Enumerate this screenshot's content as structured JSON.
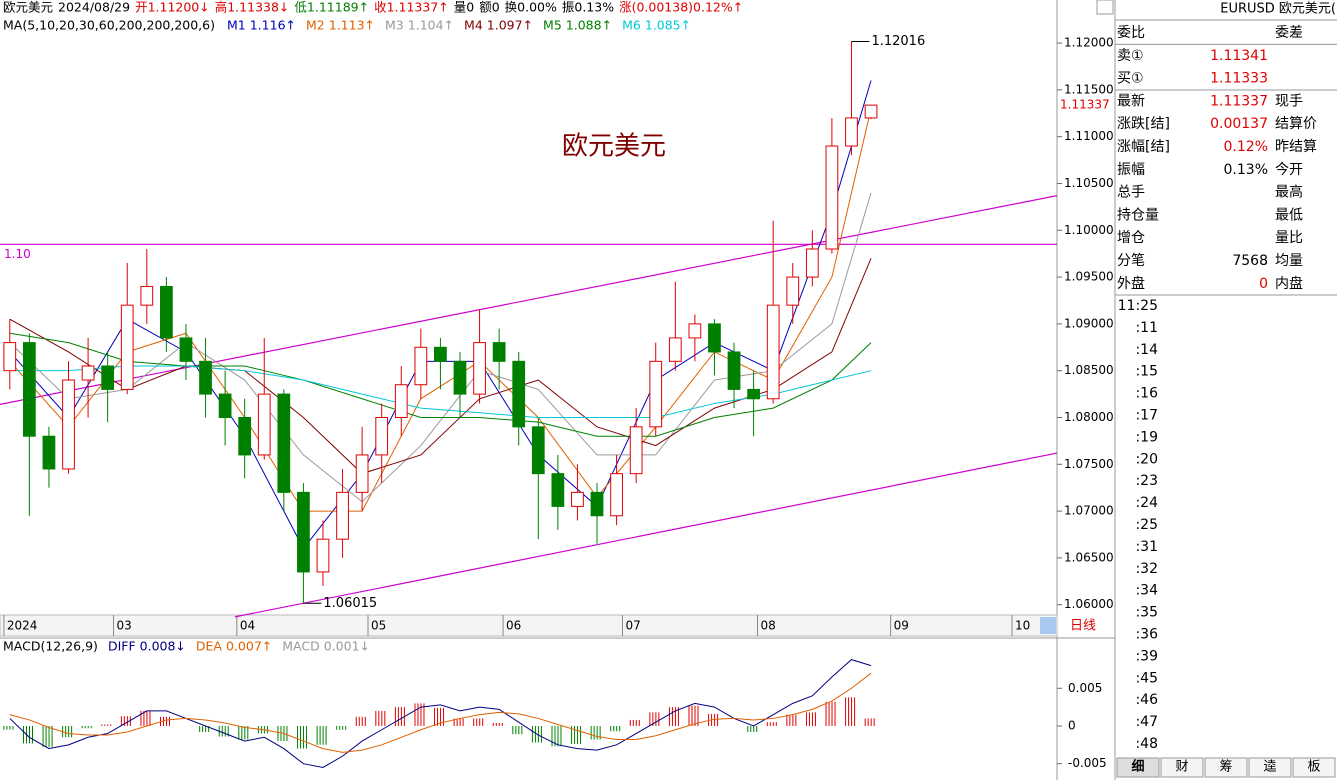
{
  "chart_data": {
    "type": "candlestick",
    "title": "欧元美元",
    "info_bar": [
      {
        "text": "欧元美元",
        "color": "#000"
      },
      {
        "text": "2024/08/29",
        "color": "#000"
      },
      {
        "text": "开1.11200↓",
        "color": "#e00000"
      },
      {
        "text": "高1.11338↓",
        "color": "#e00000"
      },
      {
        "text": "低1.11189↑",
        "color": "#008000"
      },
      {
        "text": "收1.11337↑",
        "color": "#e00000"
      },
      {
        "text": "量0",
        "color": "#000"
      },
      {
        "text": "额0",
        "color": "#000"
      },
      {
        "text": "换0.00%",
        "color": "#000"
      },
      {
        "text": "振0.13%",
        "color": "#000"
      },
      {
        "text": "涨(0.00138)0.12%↑",
        "color": "#e00000"
      }
    ],
    "ma_title": "MA(5,10,20,30,60,200,200,200,6)",
    "xlim": [
      -0.5,
      53.5
    ],
    "xticks": [
      {
        "value": -0.3,
        "label": "2024"
      },
      {
        "value": 5.3,
        "label": "03"
      },
      {
        "value": 11.6,
        "label": "04"
      },
      {
        "value": 18.3,
        "label": "05"
      },
      {
        "value": 25.2,
        "label": "06"
      },
      {
        "value": 31.3,
        "label": "07"
      },
      {
        "value": 38.2,
        "label": "08"
      },
      {
        "value": 45,
        "label": "09"
      },
      {
        "value": 51.2,
        "label": "10"
      }
    ],
    "ylim": [
      1.0589,
      1.1246
    ],
    "yticks": [
      {
        "value": 1.06,
        "label": "1.06000"
      },
      {
        "value": 1.065,
        "label": "1.06500"
      },
      {
        "value": 1.07,
        "label": "1.07000"
      },
      {
        "value": 1.075,
        "label": "1.07500"
      },
      {
        "value": 1.08,
        "label": "1.08000"
      },
      {
        "value": 1.085,
        "label": "1.08500"
      },
      {
        "value": 1.09,
        "label": "1.09000"
      },
      {
        "value": 1.095,
        "label": "1.09500"
      },
      {
        "value": 1.1,
        "label": "1.10000"
      },
      {
        "value": 1.105,
        "label": "1.10500"
      },
      {
        "value": 1.11,
        "label": "1.11000"
      },
      {
        "value": 1.115,
        "label": "1.11500"
      },
      {
        "value": 1.12,
        "label": "1.12000"
      }
    ],
    "last_price": {
      "value": 1.11337,
      "label": "1.11337"
    },
    "up_color": "#e00000",
    "down_color": "#008000",
    "candles": [
      [
        1.085,
        1.0905,
        1.083,
        1.088
      ],
      [
        1.088,
        1.089,
        1.0695,
        1.078
      ],
      [
        1.078,
        1.079,
        1.0725,
        1.0745
      ],
      [
        1.0745,
        1.086,
        1.074,
        1.084
      ],
      [
        1.084,
        1.0885,
        1.08,
        1.0855
      ],
      [
        1.0855,
        1.087,
        1.0795,
        1.083
      ],
      [
        1.083,
        1.0965,
        1.0825,
        1.092
      ],
      [
        1.092,
        1.098,
        1.09,
        1.094
      ],
      [
        1.094,
        1.095,
        1.087,
        1.0885
      ],
      [
        1.0885,
        1.09,
        1.084,
        1.086
      ],
      [
        1.086,
        1.0885,
        1.08,
        1.0825
      ],
      [
        1.0825,
        1.085,
        1.077,
        1.08
      ],
      [
        1.08,
        1.082,
        1.0735,
        1.076
      ],
      [
        1.076,
        1.0885,
        1.0755,
        1.0825
      ],
      [
        1.0825,
        1.083,
        1.07,
        1.072
      ],
      [
        1.072,
        1.073,
        1.06015,
        1.0635
      ],
      [
        1.0635,
        1.069,
        1.062,
        1.067
      ],
      [
        1.067,
        1.0745,
        1.065,
        1.072
      ],
      [
        1.072,
        1.079,
        1.07,
        1.076
      ],
      [
        1.076,
        1.0815,
        1.073,
        1.08
      ],
      [
        1.08,
        1.0855,
        1.078,
        1.0835
      ],
      [
        1.0835,
        1.0895,
        1.082,
        1.0875
      ],
      [
        1.0875,
        1.0885,
        1.083,
        1.086
      ],
      [
        1.086,
        1.087,
        1.08,
        1.0825
      ],
      [
        1.0825,
        1.0915,
        1.0815,
        1.088
      ],
      [
        1.088,
        1.0895,
        1.083,
        1.086
      ],
      [
        1.086,
        1.087,
        1.077,
        1.079
      ],
      [
        1.079,
        1.08,
        1.067,
        1.074
      ],
      [
        1.074,
        1.076,
        1.068,
        1.0705
      ],
      [
        1.0705,
        1.075,
        1.069,
        1.072
      ],
      [
        1.072,
        1.073,
        1.0665,
        1.0695
      ],
      [
        1.0695,
        1.076,
        1.0685,
        1.074
      ],
      [
        1.074,
        1.081,
        1.073,
        1.079
      ],
      [
        1.079,
        1.088,
        1.078,
        1.086
      ],
      [
        1.086,
        1.0945,
        1.085,
        1.0885
      ],
      [
        1.0885,
        1.091,
        1.086,
        1.09
      ],
      [
        1.09,
        1.0905,
        1.0845,
        1.087
      ],
      [
        1.087,
        1.088,
        1.081,
        1.083
      ],
      [
        1.083,
        1.085,
        1.078,
        1.082
      ],
      [
        1.082,
        1.101,
        1.0815,
        1.092
      ],
      [
        1.092,
        1.0965,
        1.09,
        1.095
      ],
      [
        1.095,
        1.1,
        1.094,
        1.098
      ],
      [
        1.098,
        1.112,
        1.0975,
        1.109
      ],
      [
        1.109,
        1.12016,
        1.108,
        1.112
      ],
      [
        1.112,
        1.11338,
        1.11189,
        1.11337
      ]
    ],
    "annotations": [
      {
        "text": "1.12016",
        "candle": 43
      },
      {
        "text": "1.06015",
        "candle": 15
      }
    ],
    "ma": {
      "x": [
        0,
        3,
        6,
        9,
        12,
        15,
        18,
        21,
        24,
        27,
        30,
        33,
        36,
        39,
        42,
        44
      ],
      "series": [
        {
          "name": "M1",
          "label": "1.116↑",
          "color": "#0000c0",
          "values": [
            1.087,
            1.08,
            1.0905,
            1.087,
            1.078,
            1.066,
            1.074,
            1.086,
            1.086,
            1.076,
            1.0705,
            1.084,
            1.088,
            1.085,
            1.102,
            1.116
          ]
        },
        {
          "name": "M2",
          "label": "1.113↑",
          "color": "#e06000",
          "values": [
            1.086,
            1.079,
            1.087,
            1.089,
            1.08,
            1.07,
            1.07,
            1.082,
            1.086,
            1.08,
            1.0715,
            1.079,
            1.087,
            1.084,
            1.095,
            1.113
          ]
        },
        {
          "name": "M3",
          "label": "1.104↑",
          "color": "#999999",
          "values": [
            1.088,
            1.082,
            1.083,
            1.088,
            1.084,
            1.076,
            1.071,
            1.077,
            1.085,
            1.083,
            1.076,
            1.076,
            1.084,
            1.085,
            1.09,
            1.104
          ]
        },
        {
          "name": "M4",
          "label": "1.097↑",
          "color": "#800000",
          "values": [
            1.0905,
            1.087,
            1.083,
            1.0855,
            1.085,
            1.08,
            1.074,
            1.076,
            1.082,
            1.084,
            1.079,
            1.077,
            1.081,
            1.083,
            1.087,
            1.097
          ]
        },
        {
          "name": "M5",
          "label": "1.088↑",
          "color": "#008000",
          "values": [
            1.089,
            1.088,
            1.086,
            1.0855,
            1.0855,
            1.084,
            1.082,
            1.08,
            1.08,
            1.0795,
            1.078,
            1.078,
            1.08,
            1.081,
            1.084,
            1.088
          ]
        },
        {
          "name": "M6",
          "label": "1.085↑",
          "color": "#00c8d8",
          "values": [
            1.085,
            1.085,
            1.0855,
            1.0855,
            1.085,
            1.084,
            1.0825,
            1.081,
            1.0805,
            1.08,
            1.08,
            1.08,
            1.0815,
            1.0825,
            1.084,
            1.085
          ]
        }
      ]
    },
    "trend_lines": [
      {
        "color": "#d000d0",
        "x": [
          -0.5,
          53.5
        ],
        "y": [
          1.0814,
          1.1037
        ]
      },
      {
        "color": "#d000d0",
        "x": [
          11.5,
          53.5
        ],
        "y": [
          1.0587,
          1.0762
        ]
      },
      {
        "color": "#d000d0",
        "x": [
          -0.5,
          53.5
        ],
        "y": [
          1.0985,
          1.0985
        ],
        "label": "1.10"
      }
    ],
    "period_button": "日线",
    "macd": {
      "title": "MACD(12,26,9)",
      "ylim": [
        -0.0065,
        0.0114
      ],
      "yticks": [
        -0.005,
        0,
        0.005
      ],
      "diff": {
        "name": "DIFF",
        "label": "0.008↓",
        "color": "#000080",
        "values": [
          0.001,
          -0.0015,
          -0.003,
          -0.0025,
          -0.0015,
          -0.001,
          0.0005,
          0.002,
          0.002,
          0.001,
          0.0,
          -0.001,
          -0.002,
          -0.0015,
          -0.003,
          -0.005,
          -0.0055,
          -0.004,
          -0.002,
          -0.0005,
          0.001,
          0.0025,
          0.0028,
          0.002,
          0.0025,
          0.0022,
          0.0005,
          -0.0012,
          -0.0025,
          -0.003,
          -0.0032,
          -0.0025,
          -0.001,
          0.0005,
          0.002,
          0.003,
          0.0025,
          0.001,
          0.0,
          0.0015,
          0.003,
          0.004,
          0.0065,
          0.0088,
          0.008
        ]
      },
      "dea": {
        "name": "DEA",
        "label": "0.007↑",
        "color": "#e06000",
        "values": [
          0.0015,
          0.0008,
          -0.0002,
          -0.001,
          -0.0012,
          -0.0012,
          -0.0008,
          0.0,
          0.0008,
          0.001,
          0.0008,
          0.0004,
          -0.0002,
          -0.0005,
          -0.001,
          -0.002,
          -0.003,
          -0.0035,
          -0.0032,
          -0.0025,
          -0.0015,
          -0.0005,
          0.0004,
          0.001,
          0.0015,
          0.0018,
          0.0016,
          0.001,
          0.0002,
          -0.0006,
          -0.0014,
          -0.0018,
          -0.0018,
          -0.0013,
          -0.0005,
          0.0003,
          0.0009,
          0.001,
          0.0008,
          0.001,
          0.0015,
          0.0022,
          0.0033,
          0.005,
          0.007
        ]
      },
      "hist": {
        "name": "MACD",
        "label": "0.001↓",
        "color": "#999999",
        "values": [
          -0.0005,
          -0.0023,
          -0.0028,
          -0.0015,
          -0.0003,
          0.0002,
          0.0013,
          0.002,
          0.0012,
          0.0,
          -0.0008,
          -0.0014,
          -0.0018,
          -0.001,
          -0.002,
          -0.003,
          -0.0025,
          -0.0005,
          0.0012,
          0.002,
          0.0025,
          0.003,
          0.0024,
          0.001,
          0.001,
          0.0004,
          -0.0011,
          -0.0022,
          -0.0027,
          -0.0024,
          -0.0018,
          -0.0007,
          0.0008,
          0.0018,
          0.0025,
          0.0027,
          0.0016,
          0.0,
          -0.0008,
          0.0005,
          0.0015,
          0.0018,
          0.0032,
          0.0038,
          0.001
        ]
      }
    }
  },
  "quote": {
    "title": "EURUSD 欧元美元(",
    "rows": [
      {
        "label": "委比",
        "label2": "委差"
      },
      {
        "label": "卖①",
        "value": "1.11341"
      },
      {
        "label": "买①",
        "value": "1.11333"
      },
      {
        "label": "最新",
        "value": "1.11337",
        "label2": "现手"
      },
      {
        "label": "涨跌[结]",
        "value": "0.00137",
        "label2": "结算价"
      },
      {
        "label": "涨幅[结]",
        "value": "0.12%",
        "label2": "昨结算"
      },
      {
        "label": "振幅",
        "value": "0.13%",
        "label2": "今开"
      },
      {
        "label": "总手",
        "label2": "最高"
      },
      {
        "label": "持仓量",
        "label2": "最低"
      },
      {
        "label": "增仓",
        "label2": "量比"
      },
      {
        "label": "分笔",
        "value": "7568",
        "label2": "均量"
      },
      {
        "label": "外盘",
        "value": "0",
        "label2": "内盘"
      }
    ],
    "value_colors": [
      "#000",
      "#e00000",
      "#e00000",
      "#e00000",
      "#e00000",
      "#e00000",
      "#000",
      "#000",
      "#000",
      "#000",
      "#000",
      "#e00000"
    ],
    "ticks": [
      "11:25",
      ":11",
      ":14",
      ":15",
      ":16",
      ":17",
      ":19",
      ":20",
      ":23",
      ":24",
      ":25",
      ":31",
      ":32",
      ":34",
      ":35",
      ":36",
      ":39",
      ":45",
      ":46",
      ":47",
      ":48"
    ],
    "tabs": [
      "细",
      "财",
      "筹",
      "逵",
      "板"
    ]
  }
}
